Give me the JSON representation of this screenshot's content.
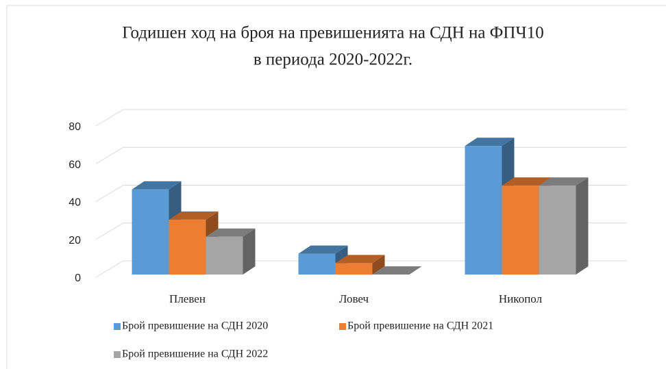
{
  "chart_data": {
    "type": "bar3d",
    "title": "Годишен ход на броя на превишенията  на СДН на ФПЧ10",
    "subtitle": "в периода 2020-2022г.",
    "categories": [
      "Плевен",
      "Ловеч",
      "Никопол"
    ],
    "series": [
      {
        "name": "Брой превишение на СДН 2020",
        "color": "#5b9bd5",
        "values": [
          45,
          11,
          68
        ]
      },
      {
        "name": "Брой превишение на СДН 2021",
        "color": "#ed7d31",
        "values": [
          29,
          6,
          47
        ]
      },
      {
        "name": "Брой превишение на СДН 2022",
        "color": "#a5a5a5",
        "values": [
          20,
          0,
          47
        ]
      }
    ],
    "ylim": [
      0,
      80
    ],
    "yticks": [
      0,
      20,
      40,
      60,
      80
    ],
    "grid": true
  }
}
